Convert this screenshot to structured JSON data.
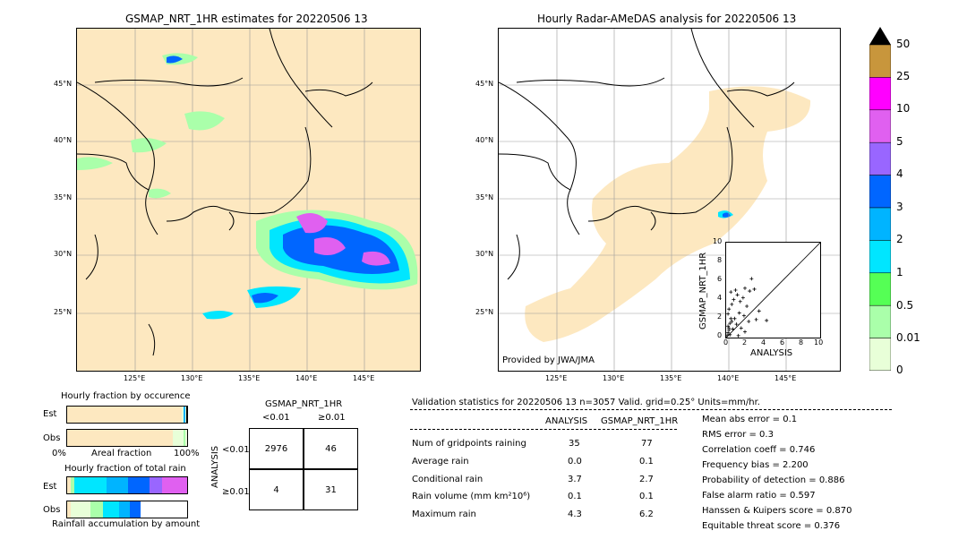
{
  "left_map": {
    "title": "GSMAP_NRT_1HR estimates for 20220506 13",
    "lon_ticks": [
      "125°E",
      "130°E",
      "135°E",
      "140°E",
      "145°E"
    ],
    "lat_ticks": [
      "45°N",
      "40°N",
      "35°N",
      "30°N",
      "25°N"
    ]
  },
  "right_map": {
    "title": "Hourly Radar-AMeDAS analysis for 20220506 13",
    "lon_ticks": [
      "125°E",
      "130°E",
      "135°E",
      "140°E",
      "145°E"
    ],
    "lat_ticks": [
      "45°N",
      "40°N",
      "35°N",
      "30°N",
      "25°N"
    ],
    "credit": "Provided by JWA/JMA"
  },
  "colorbar": {
    "labels": [
      "50",
      "25",
      "10",
      "5",
      "4",
      "3",
      "2",
      "1",
      "0.5",
      "0.01",
      "0"
    ],
    "colors": [
      "#c8963c",
      "#ff00ff",
      "#e060f0",
      "#9966ff",
      "#0066ff",
      "#00b4ff",
      "#00e6ff",
      "#55ff55",
      "#aaffaa",
      "#e8ffd8",
      "#fde8c0"
    ],
    "extend_color": "#000000"
  },
  "inset_scatter": {
    "xlabel": "ANALYSIS",
    "ylabel": "GSMAP_NRT_1HR",
    "ticks": [
      "0",
      "2",
      "4",
      "6",
      "8",
      "10"
    ]
  },
  "fraction_occurrence": {
    "title": "Hourly fraction by occurence",
    "rows": [
      "Est",
      "Obs"
    ],
    "axis_left": "0%",
    "axis_mid": "Areal fraction",
    "axis_right": "100%"
  },
  "fraction_total": {
    "title": "Hourly fraction of total rain",
    "rows": [
      "Est",
      "Obs"
    ],
    "footer": "Rainfall accumulation by amount"
  },
  "contingency": {
    "title": "GSMAP_NRT_1HR",
    "col_labels": [
      "<0.01",
      "≥0.01"
    ],
    "row_title": "ANALYSIS",
    "row_labels": [
      "<0.01",
      "≥0.01"
    ],
    "cells": [
      [
        "2976",
        "46"
      ],
      [
        "4",
        "31"
      ]
    ]
  },
  "validation": {
    "header": "Validation statistics for 20220506 13  n=3057 Valid. grid=0.25° Units=mm/hr.",
    "col_headers": [
      "ANALYSIS",
      "GSMAP_NRT_1HR"
    ],
    "rows": [
      {
        "label": "Num of gridpoints raining",
        "a": "35",
        "b": "77"
      },
      {
        "label": "Average rain",
        "a": "0.0",
        "b": "0.1"
      },
      {
        "label": "Conditional rain",
        "a": "3.7",
        "b": "2.7"
      },
      {
        "label": "Rain volume (mm km²10⁶)",
        "a": "0.1",
        "b": "0.1"
      },
      {
        "label": "Maximum rain",
        "a": "4.3",
        "b": "6.2"
      }
    ],
    "scores": [
      "Mean abs error =    0.1",
      "RMS error =    0.3",
      "Correlation coeff =  0.746",
      "Frequency bias =  2.200",
      "Probability of detection =  0.886",
      "False alarm ratio =  0.597",
      "Hanssen & Kuipers score =  0.870",
      "Equitable threat score =  0.376"
    ]
  },
  "chart_data": {
    "type": "scatter",
    "xlabel": "ANALYSIS",
    "ylabel": "GSMAP_NRT_1HR",
    "xlim": [
      0,
      10
    ],
    "ylim": [
      0,
      10
    ],
    "points": [
      [
        0.1,
        0.2
      ],
      [
        0.2,
        0.5
      ],
      [
        0.3,
        1.0
      ],
      [
        0.4,
        1.5
      ],
      [
        0.5,
        2.0
      ],
      [
        0.2,
        2.5
      ],
      [
        0.3,
        3.0
      ],
      [
        0.6,
        3.5
      ],
      [
        0.8,
        4.0
      ],
      [
        0.5,
        4.8
      ],
      [
        1.0,
        5.0
      ],
      [
        1.2,
        4.5
      ],
      [
        1.5,
        3.8
      ],
      [
        1.8,
        4.2
      ],
      [
        2.0,
        5.2
      ],
      [
        2.5,
        4.9
      ],
      [
        3.0,
        5.1
      ],
      [
        2.2,
        3.3
      ],
      [
        1.4,
        2.6
      ],
      [
        0.9,
        2.0
      ],
      [
        1.1,
        1.4
      ],
      [
        1.6,
        1.0
      ],
      [
        2.0,
        0.6
      ],
      [
        2.4,
        1.7
      ],
      [
        3.2,
        1.9
      ],
      [
        3.5,
        2.8
      ],
      [
        4.3,
        1.8
      ],
      [
        0.7,
        0.9
      ],
      [
        0.4,
        0.3
      ],
      [
        1.3,
        0.2
      ],
      [
        0.2,
        1.2
      ],
      [
        0.6,
        1.7
      ],
      [
        2.7,
        6.2
      ],
      [
        1.9,
        2.3
      ],
      [
        0.3,
        0.8
      ]
    ]
  }
}
